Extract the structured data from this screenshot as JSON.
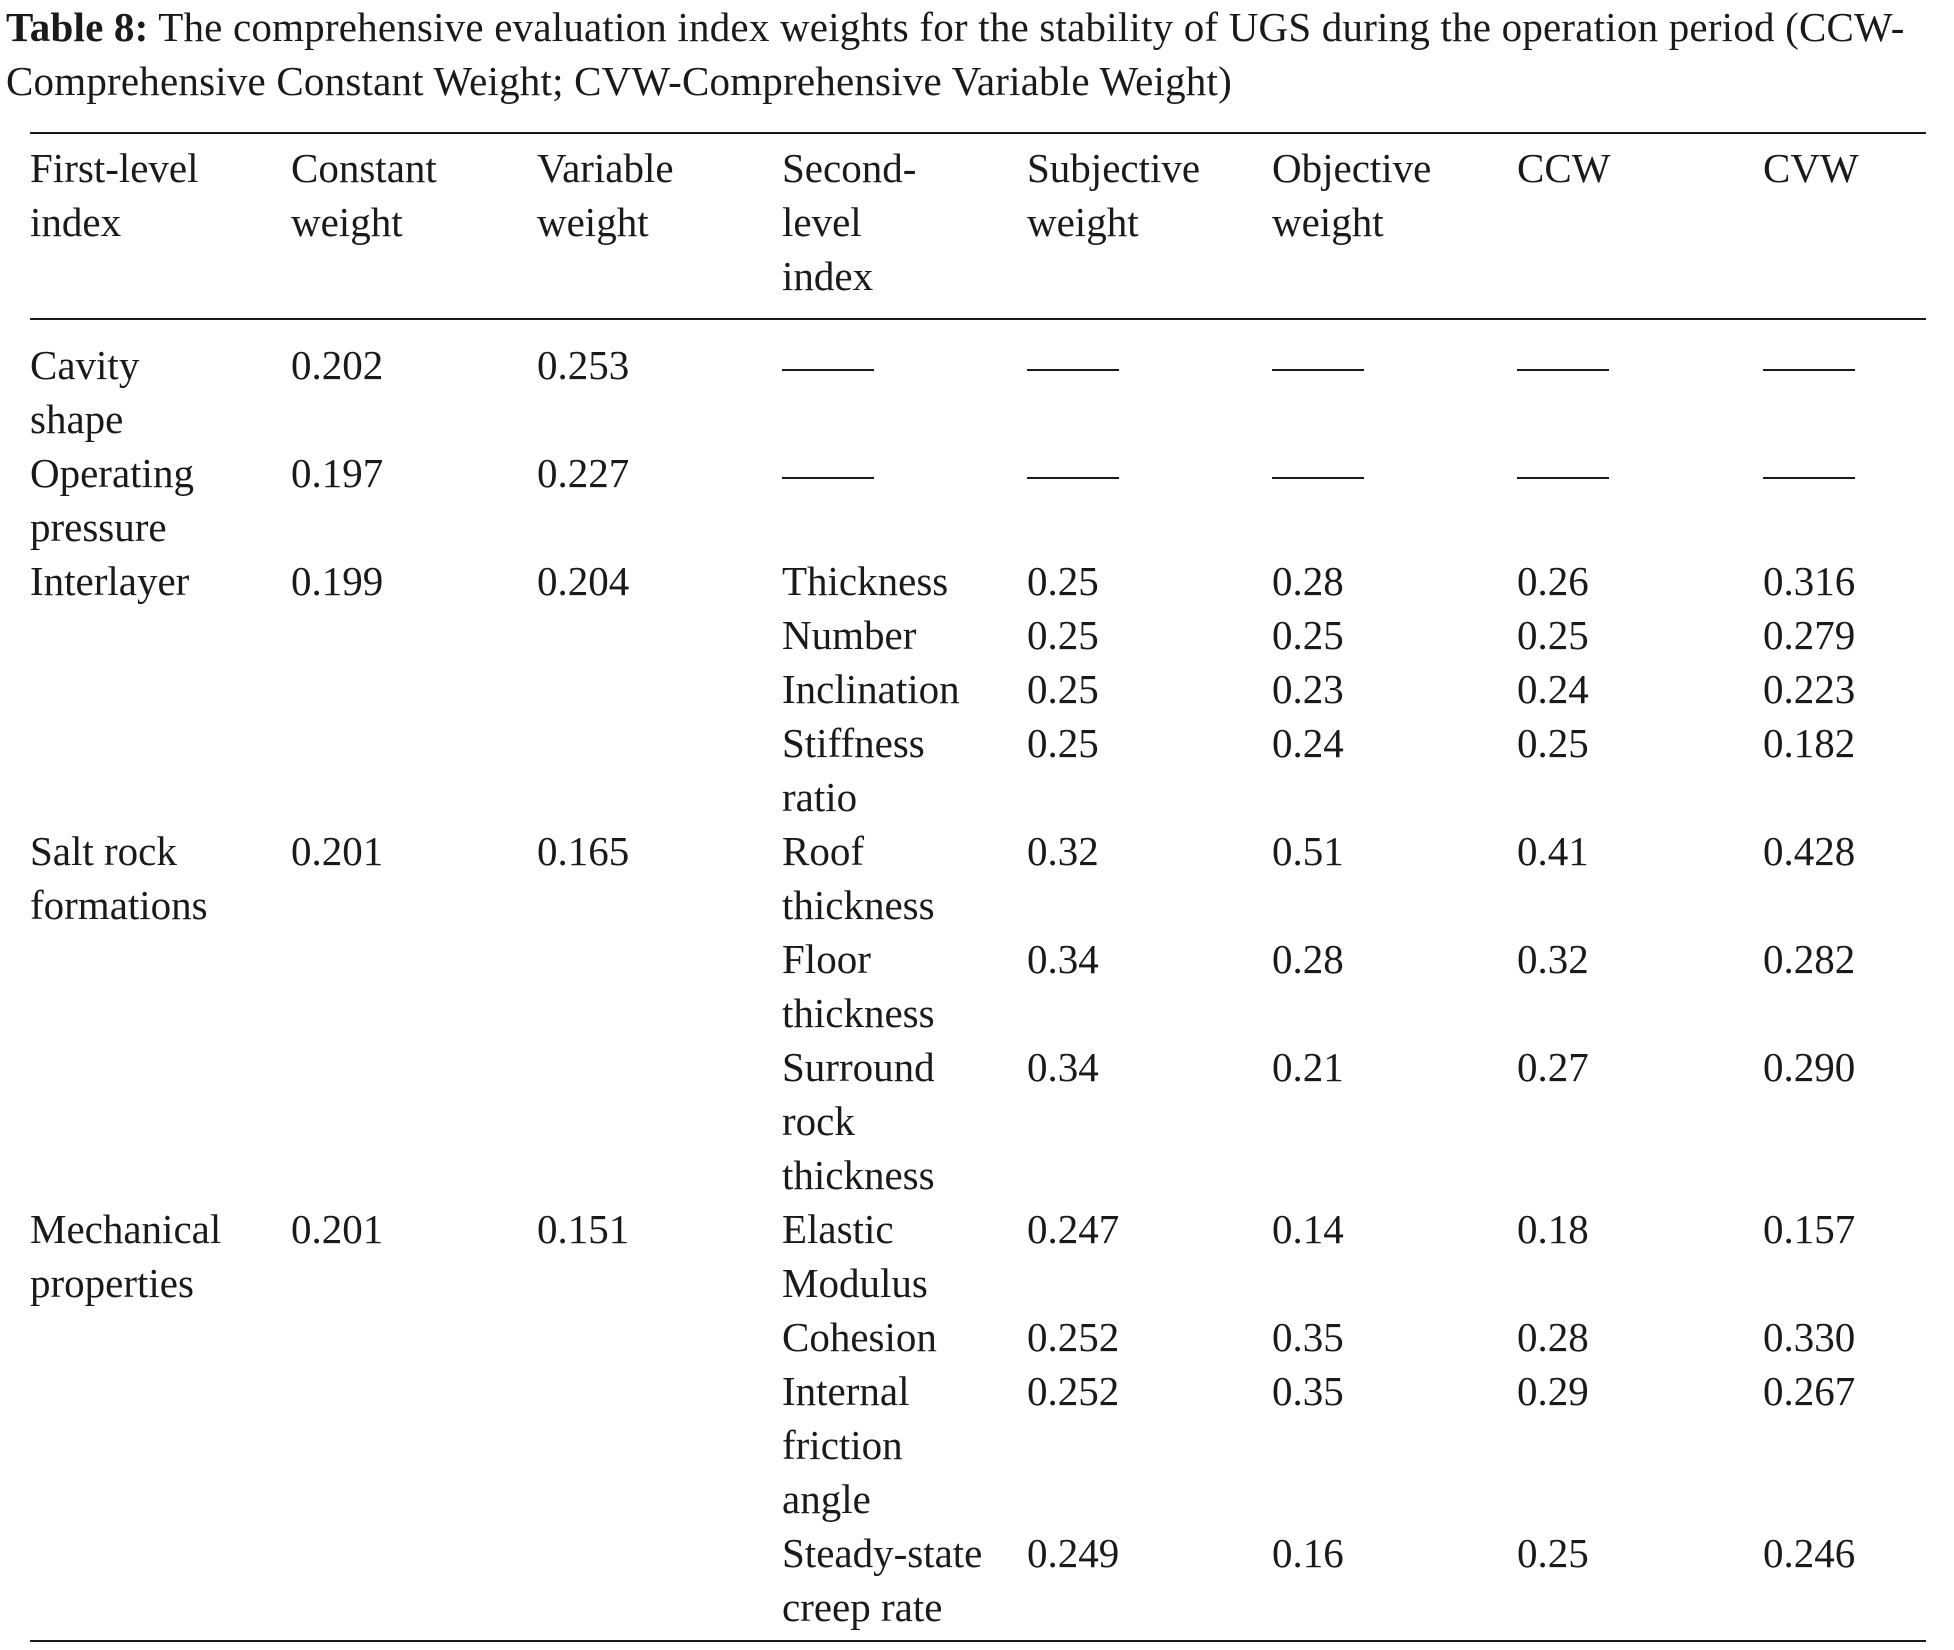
{
  "caption": {
    "label": "Table 8:",
    "text": "The comprehensive evaluation index weights for the stability of UGS during the operation period (CCW-Comprehensive Constant Weight; CVW-Comprehensive Variable Weight)"
  },
  "table": {
    "headers": [
      "First-level\nindex",
      "Constant\nweight",
      "Variable\nweight",
      "Second-\nlevel\nindex",
      "Subjective\nweight",
      "Objective\nweight",
      "CCW",
      "CVW"
    ],
    "groups": [
      {
        "first_level": "Cavity\nshape",
        "constant_weight": "0.202",
        "variable_weight": "0.253",
        "rows": []
      },
      {
        "first_level": "Operating\npressure",
        "constant_weight": "0.197",
        "variable_weight": "0.227",
        "rows": []
      },
      {
        "first_level": "Interlayer",
        "constant_weight": "0.199",
        "variable_weight": "0.204",
        "rows": [
          {
            "second_level": "Thickness",
            "subjective": "0.25",
            "objective": "0.28",
            "ccw": "0.26",
            "cvw": "0.316"
          },
          {
            "second_level": "Number",
            "subjective": "0.25",
            "objective": "0.25",
            "ccw": "0.25",
            "cvw": "0.279"
          },
          {
            "second_level": "Inclination",
            "subjective": "0.25",
            "objective": "0.23",
            "ccw": "0.24",
            "cvw": "0.223"
          },
          {
            "second_level": "Stiffness\nratio",
            "subjective": "0.25",
            "objective": "0.24",
            "ccw": "0.25",
            "cvw": "0.182"
          }
        ]
      },
      {
        "first_level": "Salt rock\nformations",
        "constant_weight": "0.201",
        "variable_weight": "0.165",
        "rows": [
          {
            "second_level": "Roof\nthickness",
            "subjective": "0.32",
            "objective": "0.51",
            "ccw": "0.41",
            "cvw": "0.428"
          },
          {
            "second_level": "Floor\nthickness",
            "subjective": "0.34",
            "objective": "0.28",
            "ccw": "0.32",
            "cvw": "0.282"
          },
          {
            "second_level": "Surround\nrock\nthickness",
            "subjective": "0.34",
            "objective": "0.21",
            "ccw": "0.27",
            "cvw": "0.290"
          }
        ]
      },
      {
        "first_level": "Mechanical\nproperties",
        "constant_weight": "0.201",
        "variable_weight": "0.151",
        "rows": [
          {
            "second_level": "Elastic\nModulus",
            "subjective": "0.247",
            "objective": "0.14",
            "ccw": "0.18",
            "cvw": "0.157"
          },
          {
            "second_level": "Cohesion",
            "subjective": "0.252",
            "objective": "0.35",
            "ccw": "0.28",
            "cvw": "0.330"
          },
          {
            "second_level": "Internal\nfriction\nangle",
            "subjective": "0.252",
            "objective": "0.35",
            "ccw": "0.29",
            "cvw": "0.267"
          },
          {
            "second_level": "Steady-state\ncreep rate",
            "subjective": "0.249",
            "objective": "0.16",
            "ccw": "0.25",
            "cvw": "0.246"
          }
        ]
      }
    ]
  }
}
